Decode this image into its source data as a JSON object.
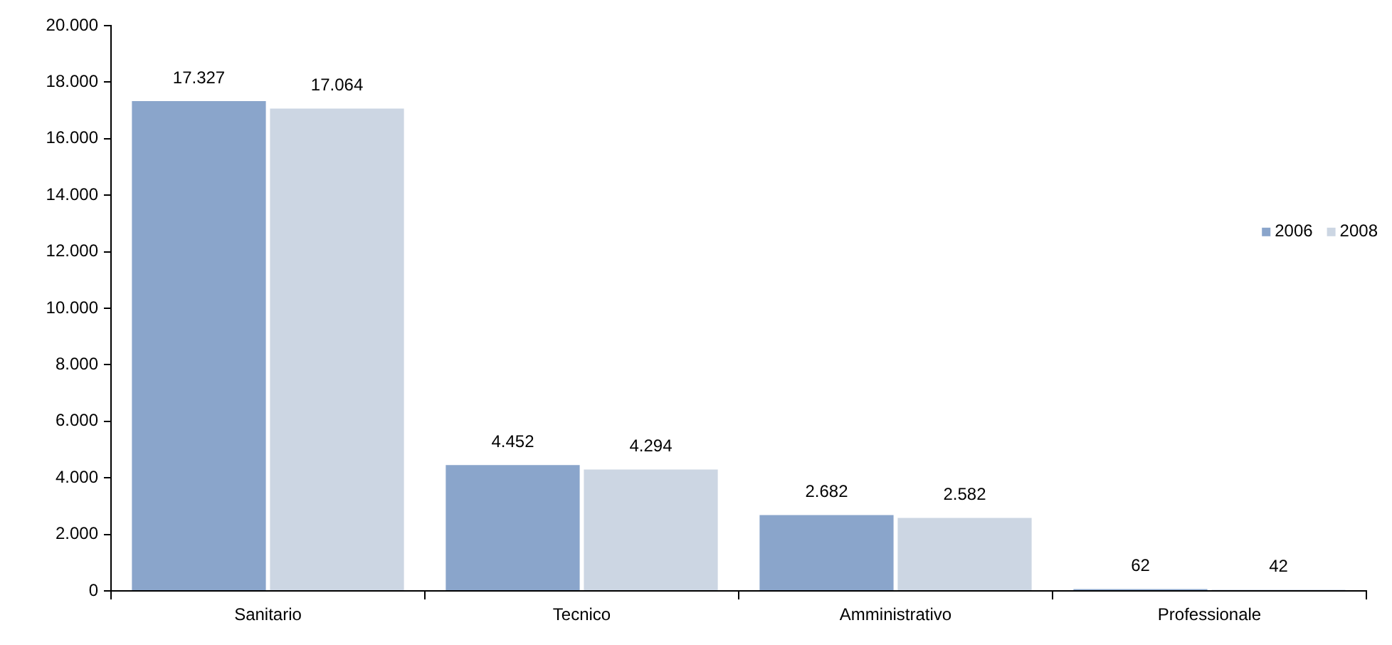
{
  "chart_data": {
    "type": "bar",
    "categories": [
      "Sanitario",
      "Tecnico",
      "Amministrativo",
      "Professionale"
    ],
    "series": [
      {
        "name": "2006",
        "color": "#8aa5cb",
        "values": [
          17327,
          4452,
          2682,
          62
        ],
        "value_labels": [
          "17.327",
          "4.452",
          "2.682",
          "62"
        ]
      },
      {
        "name": "2008",
        "color": "#ccd6e3",
        "values": [
          17064,
          4294,
          2582,
          42
        ],
        "value_labels": [
          "17.064",
          "4.294",
          "2.582",
          "42"
        ]
      }
    ],
    "ylim": [
      0,
      20000
    ],
    "yticks": [
      {
        "value": 0,
        "label": "0"
      },
      {
        "value": 2000,
        "label": "2.000"
      },
      {
        "value": 4000,
        "label": "4.000"
      },
      {
        "value": 6000,
        "label": "6.000"
      },
      {
        "value": 8000,
        "label": "8.000"
      },
      {
        "value": 10000,
        "label": "10.000"
      },
      {
        "value": 12000,
        "label": "12.000"
      },
      {
        "value": 14000,
        "label": "14.000"
      },
      {
        "value": 16000,
        "label": "16.000"
      },
      {
        "value": 18000,
        "label": "18.000"
      },
      {
        "value": 20000,
        "label": "20.000"
      }
    ],
    "grid": false,
    "legend": "right"
  }
}
